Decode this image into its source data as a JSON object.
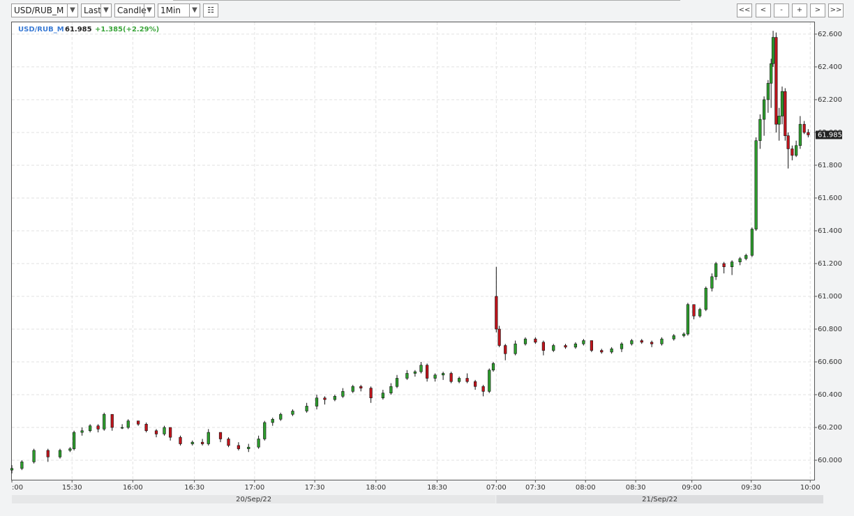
{
  "toolbar": {
    "symbol": "USD/RUB_M",
    "price_type": "Last",
    "chart_style": "Candle",
    "interval": "1Min",
    "nav": [
      "<<",
      "<",
      "-",
      "+",
      ">",
      ">>"
    ]
  },
  "chart_data": {
    "type": "candlestick",
    "title": "USD/RUB_M",
    "last_price": 61.985,
    "change": "+1.385(+2.29%)",
    "x": [
      0,
      5,
      11,
      18,
      24,
      29,
      31,
      35,
      39,
      43,
      46,
      50,
      55,
      58,
      63,
      67,
      72,
      76,
      79,
      84,
      90,
      95,
      98,
      104,
      108,
      113,
      118,
      123,
      126,
      130,
      134,
      140,
      147,
      152,
      156,
      161,
      165,
      170,
      174,
      179,
      185,
      189,
      192,
      197,
      201,
      204,
      207,
      211,
      215,
      219,
      223,
      227,
      231,
      235,
      238,
      240,
      241.5,
      243,
      246,
      251,
      256,
      261,
      265,
      270,
      276,
      281,
      285,
      289,
      294,
      299,
      304,
      309,
      314,
      319,
      324,
      330,
      335,
      337,
      340,
      343,
      346,
      349,
      351,
      355,
      359,
      363,
      366,
      369,
      371,
      373,
      375,
      377,
      378.5,
      379.5,
      381,
      382.5,
      384,
      385.5,
      387,
      389,
      391,
      393,
      395,
      397
    ],
    "open": [
      59.94,
      59.95,
      59.99,
      60.06,
      60.02,
      60.06,
      60.07,
      60.17,
      60.18,
      60.21,
      60.19,
      60.28,
      60.2,
      60.2,
      60.24,
      60.22,
      60.18,
      60.16,
      60.2,
      60.14,
      60.1,
      60.11,
      60.1,
      60.17,
      60.13,
      60.09,
      60.07,
      60.08,
      60.13,
      60.23,
      60.25,
      60.28,
      60.3,
      60.33,
      60.38,
      60.37,
      60.39,
      60.42,
      60.45,
      60.44,
      60.38,
      60.41,
      60.45,
      60.5,
      60.53,
      60.54,
      60.58,
      60.5,
      60.52,
      60.53,
      60.48,
      60.5,
      60.48,
      60.45,
      60.42,
      60.55,
      61.0,
      60.8,
      60.7,
      60.65,
      60.71,
      60.74,
      60.72,
      60.67,
      60.7,
      60.69,
      60.71,
      60.73,
      60.67,
      60.66,
      60.68,
      60.71,
      60.73,
      60.72,
      60.71,
      60.74,
      60.76,
      60.77,
      60.95,
      60.88,
      60.92,
      61.05,
      61.12,
      61.2,
      61.18,
      61.21,
      61.23,
      61.25,
      61.41,
      61.95,
      62.08,
      62.2,
      62.3,
      62.42,
      62.58,
      62.05,
      62.1,
      62.25,
      61.98,
      61.9,
      61.86,
      61.92,
      62.05,
      62.0
    ],
    "high": [
      59.97,
      60.0,
      60.07,
      60.07,
      60.07,
      60.08,
      60.18,
      60.2,
      60.22,
      60.22,
      60.29,
      60.28,
      60.22,
      60.25,
      60.24,
      60.23,
      60.19,
      60.21,
      60.2,
      60.15,
      60.12,
      60.13,
      60.19,
      60.17,
      60.14,
      60.11,
      60.1,
      60.15,
      60.24,
      60.26,
      60.29,
      60.31,
      60.35,
      60.4,
      60.39,
      60.4,
      60.44,
      60.46,
      60.46,
      60.45,
      60.43,
      60.47,
      60.52,
      60.55,
      60.55,
      60.6,
      60.59,
      60.53,
      60.54,
      60.54,
      60.51,
      60.53,
      60.49,
      60.46,
      60.56,
      60.6,
      61.18,
      60.82,
      60.71,
      60.73,
      60.75,
      60.75,
      60.73,
      60.71,
      60.71,
      60.72,
      60.74,
      60.73,
      60.68,
      60.69,
      60.72,
      60.74,
      60.74,
      60.73,
      60.75,
      60.77,
      60.78,
      60.96,
      60.95,
      60.93,
      61.06,
      61.14,
      61.21,
      61.21,
      61.22,
      61.24,
      61.26,
      61.42,
      61.97,
      62.11,
      62.22,
      62.32,
      62.45,
      62.62,
      62.61,
      62.15,
      62.28,
      62.27,
      62.0,
      61.92,
      61.95,
      62.1,
      62.07,
      62.02
    ],
    "low": [
      59.92,
      59.94,
      59.98,
      59.99,
      60.01,
      60.05,
      60.06,
      60.15,
      60.17,
      60.17,
      60.18,
      60.18,
      60.19,
      60.19,
      60.21,
      60.17,
      60.14,
      60.15,
      60.12,
      60.09,
      60.09,
      60.09,
      60.09,
      60.11,
      60.08,
      60.06,
      60.05,
      60.07,
      60.12,
      60.21,
      60.24,
      60.27,
      60.29,
      60.31,
      60.34,
      60.36,
      60.38,
      60.41,
      60.42,
      60.35,
      60.37,
      60.4,
      60.44,
      60.49,
      60.51,
      60.53,
      60.48,
      60.48,
      60.49,
      60.47,
      60.47,
      60.47,
      60.43,
      60.39,
      60.41,
      60.54,
      60.78,
      60.69,
      60.61,
      60.64,
      60.7,
      60.71,
      60.64,
      60.66,
      60.68,
      60.68,
      60.7,
      60.66,
      60.65,
      60.65,
      60.66,
      60.7,
      60.71,
      60.69,
      60.7,
      60.73,
      60.75,
      60.76,
      60.86,
      60.87,
      60.91,
      61.03,
      61.1,
      61.14,
      61.13,
      61.19,
      61.22,
      61.24,
      61.4,
      61.9,
      61.98,
      62.12,
      62.15,
      62.4,
      62.0,
      61.95,
      62.05,
      61.95,
      61.78,
      61.83,
      61.85,
      61.9,
      61.99,
      61.97
    ],
    "close": [
      59.95,
      59.99,
      60.06,
      60.02,
      60.06,
      60.07,
      60.17,
      60.18,
      60.21,
      60.19,
      60.28,
      60.2,
      60.2,
      60.24,
      60.22,
      60.18,
      60.16,
      60.2,
      60.14,
      60.1,
      60.11,
      60.1,
      60.17,
      60.13,
      60.09,
      60.07,
      60.08,
      60.13,
      60.23,
      60.25,
      60.28,
      60.3,
      60.33,
      60.38,
      60.37,
      60.39,
      60.42,
      60.45,
      60.44,
      60.38,
      60.41,
      60.45,
      60.5,
      60.53,
      60.54,
      60.58,
      60.5,
      60.52,
      60.53,
      60.48,
      60.5,
      60.48,
      60.45,
      60.42,
      60.55,
      60.59,
      60.8,
      60.7,
      60.65,
      60.71,
      60.74,
      60.72,
      60.67,
      60.7,
      60.69,
      60.71,
      60.73,
      60.67,
      60.66,
      60.68,
      60.71,
      60.73,
      60.72,
      60.71,
      60.74,
      60.76,
      60.77,
      60.95,
      60.88,
      60.92,
      61.05,
      61.12,
      61.2,
      61.18,
      61.21,
      61.23,
      61.25,
      61.41,
      61.95,
      62.08,
      62.2,
      62.3,
      62.42,
      62.58,
      62.05,
      62.1,
      62.25,
      61.98,
      61.9,
      61.86,
      61.92,
      62.05,
      62.0,
      61.985
    ],
    "up_color": "#2e9e2e",
    "down_color": "#c0141c",
    "xlim": [
      0,
      400
    ],
    "xticks": [
      {
        "value": 0,
        "label": ":00"
      },
      {
        "value": 30,
        "label": "15:30"
      },
      {
        "value": 60.3,
        "label": "16:00"
      },
      {
        "value": 91,
        "label": "16:30"
      },
      {
        "value": 121,
        "label": "17:00"
      },
      {
        "value": 151,
        "label": "17:30"
      },
      {
        "value": 181.5,
        "label": "18:00"
      },
      {
        "value": 212,
        "label": "18:30"
      },
      {
        "value": 241.5,
        "label": "07:00"
      },
      {
        "value": 261,
        "label": "07:30"
      },
      {
        "value": 286,
        "label": "08:00"
      },
      {
        "value": 311,
        "label": "08:30"
      },
      {
        "value": 339,
        "label": "09:00"
      },
      {
        "value": 368.6,
        "label": "09:30"
      },
      {
        "value": 398,
        "label": "10:00"
      }
    ],
    "date_labels": [
      "20/Sep/22",
      "21/Sep/22"
    ],
    "ylim": [
      59.881,
      62.672
    ],
    "yticks": [
      {
        "value": 60.0,
        "label": "60.000"
      },
      {
        "value": 60.2,
        "label": "60.200"
      },
      {
        "value": 60.4,
        "label": "60.400"
      },
      {
        "value": 60.6,
        "label": "60.600"
      },
      {
        "value": 60.8,
        "label": "60.800"
      },
      {
        "value": 61.0,
        "label": "61.000"
      },
      {
        "value": 61.2,
        "label": "61.200"
      },
      {
        "value": 61.4,
        "label": "61.400"
      },
      {
        "value": 61.6,
        "label": "61.600"
      },
      {
        "value": 61.8,
        "label": "61.800"
      },
      {
        "value": 62.0,
        "label": "62.000"
      },
      {
        "value": 62.2,
        "label": "62.200"
      },
      {
        "value": 62.4,
        "label": "62.400"
      },
      {
        "value": 62.6,
        "label": "62.600"
      }
    ],
    "grid": true
  }
}
